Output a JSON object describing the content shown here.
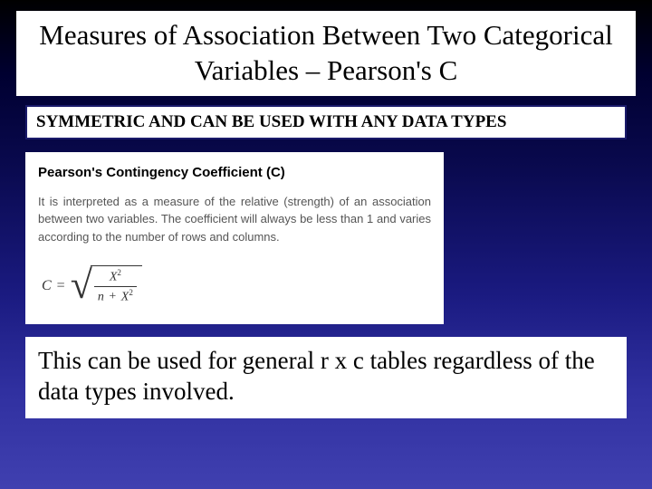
{
  "title": "Measures of Association Between Two Categorical Variables – Pearson's C",
  "callout": "SYMMETRIC AND CAN BE USED WITH ANY DATA TYPES",
  "card": {
    "heading": "Pearson's Contingency Coefficient (C)",
    "body": "It is interpreted as a measure of the relative (strength) of an association between two variables. The coefficient will always be less than 1 and varies according to the number of rows and columns.",
    "formula": {
      "lhs": "C",
      "eq": "=",
      "numerator_base": "X",
      "numerator_exp": "2",
      "denominator_left": "n",
      "denominator_op": "+",
      "denominator_base": "X",
      "denominator_exp": "2"
    }
  },
  "footer": "This can be used for general r x c tables regardless of the data types involved.",
  "colors": {
    "card_bg": "#ffffff",
    "text": "#000000",
    "body_text": "#555555",
    "border": "#1a1a6a"
  },
  "fonts": {
    "title_pt": 31,
    "callout_pt": 19,
    "card_heading_pt": 15,
    "card_body_pt": 13,
    "footer_pt": 27
  }
}
